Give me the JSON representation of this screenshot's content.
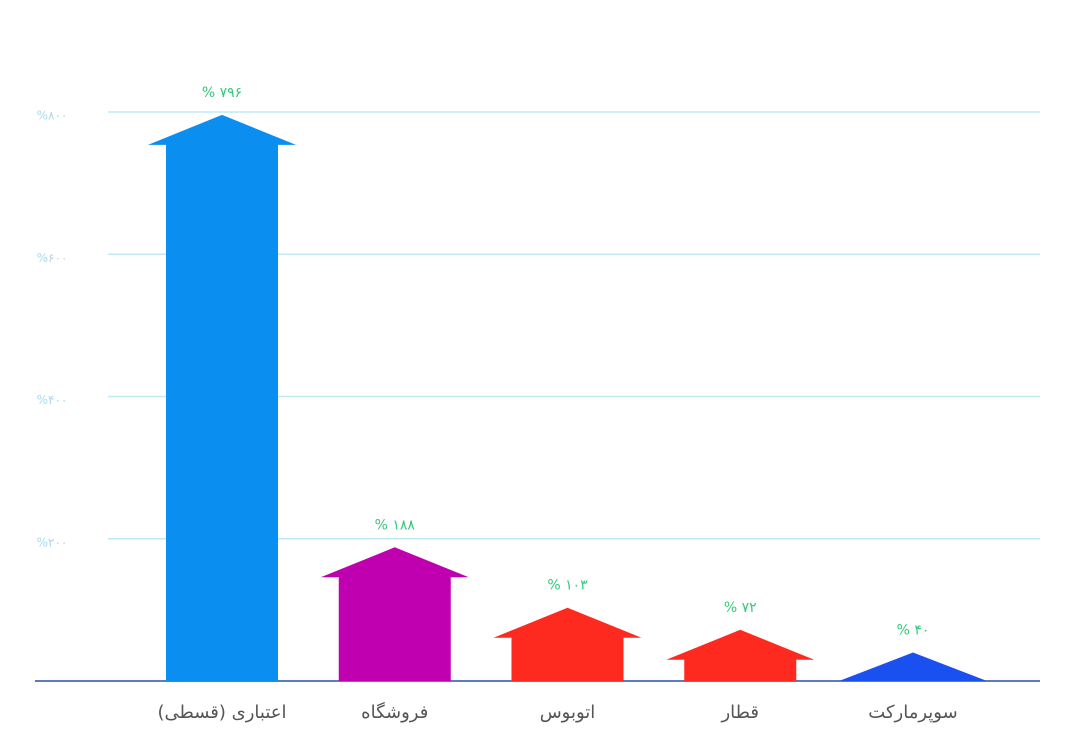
{
  "chart_data": {
    "type": "arrow-bar",
    "categories": [
      "اعتباری (قسطی)",
      "فروشگاه",
      "اتوبوس",
      "قطار",
      "سوپرمارکت"
    ],
    "values": [
      796,
      188,
      103,
      72,
      40
    ],
    "value_labels": [
      "% ۷۹۶",
      "% ۱۸۸",
      "% ۱۰۳",
      "% ۷۲",
      "% ۴۰"
    ],
    "colors": [
      "#0a8ef0",
      "#c000b0",
      "#ff2a1f",
      "#ff2a1f",
      "#1a4ff0"
    ],
    "ylim": [
      0,
      800
    ],
    "yticks": [
      {
        "value": 200,
        "label": "%۲۰۰"
      },
      {
        "value": 400,
        "label": "%۴۰۰"
      },
      {
        "value": 600,
        "label": "%۶۰۰"
      },
      {
        "value": 800,
        "label": "%۸۰۰"
      }
    ],
    "grid": true
  }
}
